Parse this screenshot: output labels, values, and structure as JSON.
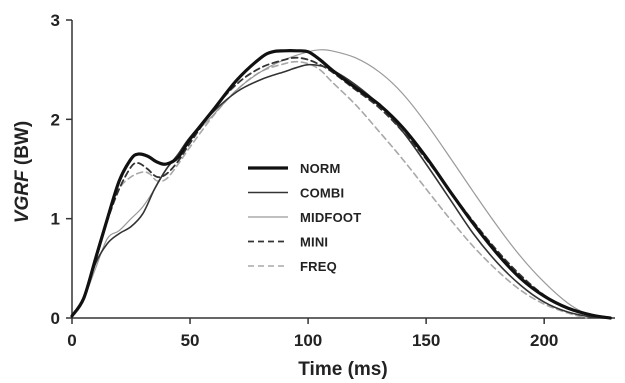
{
  "chart_data": {
    "type": "line",
    "xlabel": "Time (ms)",
    "ylabel_italic": "VGRF",
    "ylabel_rest": " (BW)",
    "xlim": [
      0,
      230
    ],
    "ylim": [
      0,
      3
    ],
    "xticks": [
      0,
      50,
      100,
      150,
      200
    ],
    "yticks": [
      0,
      1,
      2,
      3
    ],
    "grid": false,
    "legend_position": "center",
    "series": [
      {
        "name": "NORM",
        "color": "#111111",
        "width": 3.2,
        "dash": "",
        "points": [
          [
            0,
            0.02
          ],
          [
            5,
            0.2
          ],
          [
            10,
            0.6
          ],
          [
            15,
            1.0
          ],
          [
            20,
            1.38
          ],
          [
            25,
            1.6
          ],
          [
            28,
            1.65
          ],
          [
            32,
            1.63
          ],
          [
            36,
            1.57
          ],
          [
            40,
            1.55
          ],
          [
            45,
            1.62
          ],
          [
            50,
            1.8
          ],
          [
            60,
            2.1
          ],
          [
            70,
            2.4
          ],
          [
            80,
            2.62
          ],
          [
            85,
            2.68
          ],
          [
            90,
            2.69
          ],
          [
            95,
            2.69
          ],
          [
            100,
            2.68
          ],
          [
            105,
            2.6
          ],
          [
            110,
            2.5
          ],
          [
            120,
            2.32
          ],
          [
            130,
            2.15
          ],
          [
            140,
            1.92
          ],
          [
            150,
            1.62
          ],
          [
            160,
            1.28
          ],
          [
            170,
            0.95
          ],
          [
            180,
            0.65
          ],
          [
            190,
            0.4
          ],
          [
            200,
            0.22
          ],
          [
            210,
            0.1
          ],
          [
            220,
            0.03
          ],
          [
            228,
            0.0
          ]
        ]
      },
      {
        "name": "COMBI",
        "color": "#333333",
        "width": 1.6,
        "dash": "",
        "points": [
          [
            0,
            0.02
          ],
          [
            5,
            0.2
          ],
          [
            10,
            0.55
          ],
          [
            15,
            0.75
          ],
          [
            20,
            0.85
          ],
          [
            25,
            0.92
          ],
          [
            30,
            1.05
          ],
          [
            35,
            1.3
          ],
          [
            40,
            1.5
          ],
          [
            45,
            1.65
          ],
          [
            50,
            1.82
          ],
          [
            60,
            2.08
          ],
          [
            70,
            2.28
          ],
          [
            80,
            2.4
          ],
          [
            90,
            2.48
          ],
          [
            95,
            2.52
          ],
          [
            100,
            2.55
          ],
          [
            105,
            2.54
          ],
          [
            110,
            2.5
          ],
          [
            120,
            2.35
          ],
          [
            130,
            2.15
          ],
          [
            140,
            1.88
          ],
          [
            150,
            1.55
          ],
          [
            160,
            1.2
          ],
          [
            170,
            0.85
          ],
          [
            180,
            0.56
          ],
          [
            190,
            0.33
          ],
          [
            200,
            0.16
          ],
          [
            210,
            0.06
          ],
          [
            220,
            0.01
          ],
          [
            226,
            0.0
          ]
        ]
      },
      {
        "name": "MIDFOOT",
        "color": "#9a9a9a",
        "width": 1.2,
        "dash": "",
        "points": [
          [
            0,
            0.02
          ],
          [
            5,
            0.2
          ],
          [
            10,
            0.5
          ],
          [
            15,
            0.8
          ],
          [
            20,
            0.88
          ],
          [
            25,
            1.0
          ],
          [
            30,
            1.12
          ],
          [
            35,
            1.3
          ],
          [
            40,
            1.5
          ],
          [
            45,
            1.65
          ],
          [
            50,
            1.8
          ],
          [
            60,
            2.05
          ],
          [
            70,
            2.3
          ],
          [
            80,
            2.48
          ],
          [
            90,
            2.6
          ],
          [
            100,
            2.68
          ],
          [
            105,
            2.7
          ],
          [
            110,
            2.69
          ],
          [
            120,
            2.62
          ],
          [
            130,
            2.48
          ],
          [
            140,
            2.26
          ],
          [
            150,
            1.96
          ],
          [
            160,
            1.62
          ],
          [
            170,
            1.27
          ],
          [
            180,
            0.93
          ],
          [
            190,
            0.62
          ],
          [
            200,
            0.36
          ],
          [
            210,
            0.15
          ],
          [
            218,
            0.04
          ],
          [
            224,
            0.0
          ]
        ]
      },
      {
        "name": "MINI",
        "color": "#333333",
        "width": 1.8,
        "dash": "6,4",
        "points": [
          [
            0,
            0.02
          ],
          [
            5,
            0.2
          ],
          [
            10,
            0.58
          ],
          [
            15,
            0.98
          ],
          [
            20,
            1.3
          ],
          [
            25,
            1.52
          ],
          [
            28,
            1.56
          ],
          [
            32,
            1.5
          ],
          [
            36,
            1.42
          ],
          [
            40,
            1.45
          ],
          [
            45,
            1.58
          ],
          [
            50,
            1.76
          ],
          [
            60,
            2.1
          ],
          [
            70,
            2.36
          ],
          [
            80,
            2.52
          ],
          [
            90,
            2.6
          ],
          [
            95,
            2.62
          ],
          [
            100,
            2.6
          ],
          [
            105,
            2.55
          ],
          [
            110,
            2.48
          ],
          [
            120,
            2.3
          ],
          [
            130,
            2.12
          ],
          [
            140,
            1.88
          ],
          [
            150,
            1.6
          ],
          [
            160,
            1.28
          ],
          [
            170,
            0.97
          ],
          [
            180,
            0.68
          ],
          [
            190,
            0.43
          ],
          [
            200,
            0.23
          ],
          [
            210,
            0.1
          ],
          [
            220,
            0.03
          ],
          [
            226,
            0.0
          ]
        ]
      },
      {
        "name": "FREQ",
        "color": "#a8a8a8",
        "width": 1.6,
        "dash": "6,4",
        "points": [
          [
            0,
            0.02
          ],
          [
            5,
            0.2
          ],
          [
            10,
            0.58
          ],
          [
            15,
            1.0
          ],
          [
            20,
            1.3
          ],
          [
            25,
            1.42
          ],
          [
            30,
            1.47
          ],
          [
            33,
            1.45
          ],
          [
            36,
            1.38
          ],
          [
            40,
            1.4
          ],
          [
            45,
            1.55
          ],
          [
            50,
            1.72
          ],
          [
            60,
            2.04
          ],
          [
            70,
            2.3
          ],
          [
            80,
            2.48
          ],
          [
            90,
            2.56
          ],
          [
            95,
            2.58
          ],
          [
            100,
            2.56
          ],
          [
            105,
            2.5
          ],
          [
            110,
            2.38
          ],
          [
            120,
            2.15
          ],
          [
            130,
            1.88
          ],
          [
            140,
            1.6
          ],
          [
            150,
            1.3
          ],
          [
            160,
            1.0
          ],
          [
            170,
            0.72
          ],
          [
            180,
            0.48
          ],
          [
            190,
            0.28
          ],
          [
            200,
            0.14
          ],
          [
            210,
            0.05
          ],
          [
            218,
            0.0
          ]
        ]
      }
    ]
  }
}
